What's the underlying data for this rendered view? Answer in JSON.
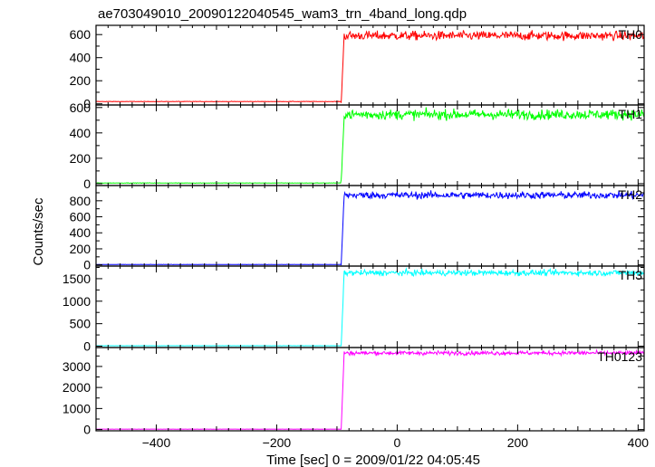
{
  "chart_data": {
    "type": "line",
    "title": "ae703049010_20090122040545_wam3_trn_4band_long.qdp",
    "xlabel": "Time [sec] 0 = 2009/01/22 04:05:45",
    "ylabel": "Counts/sec",
    "xlim": [
      -500,
      410
    ],
    "x_ticks": [
      -400,
      -200,
      0,
      200,
      400
    ],
    "x_tick_labels": [
      "−400",
      "−200",
      "0",
      "200",
      "400"
    ],
    "onset_time": -92,
    "panels": [
      {
        "name": "TH0",
        "color": "#ff0000",
        "ylim": [
          -10,
          680
        ],
        "y_ticks": [
          0,
          200,
          400,
          600
        ],
        "y_tick_labels": [
          "0",
          "200",
          "400",
          "600"
        ],
        "pre_level": 20,
        "post_level": 590,
        "noise": 28
      },
      {
        "name": "TH1",
        "color": "#00ff00",
        "ylim": [
          -15,
          620
        ],
        "y_ticks": [
          0,
          200,
          400,
          600
        ],
        "y_tick_labels": [
          "0",
          "200",
          "400",
          "600"
        ],
        "pre_level": 5,
        "post_level": 545,
        "noise": 28
      },
      {
        "name": "TH2",
        "color": "#0000ff",
        "ylim": [
          -15,
          990
        ],
        "y_ticks": [
          0,
          200,
          400,
          600,
          800
        ],
        "y_tick_labels": [
          "0",
          "200",
          "400",
          "600",
          "800"
        ],
        "pre_level": 5,
        "post_level": 870,
        "noise": 32
      },
      {
        "name": "TH3",
        "color": "#00ffff",
        "ylim": [
          -30,
          1780
        ],
        "y_ticks": [
          0,
          500,
          1000,
          1500
        ],
        "y_tick_labels": [
          "0",
          "500",
          "1000",
          "1500"
        ],
        "pre_level": 10,
        "post_level": 1630,
        "noise": 45
      },
      {
        "name": "TH0123",
        "color": "#ff00ff",
        "ylim": [
          -60,
          3900
        ],
        "y_ticks": [
          0,
          1000,
          2000,
          3000
        ],
        "y_tick_labels": [
          "0",
          "1000",
          "2000",
          "3000"
        ],
        "pre_level": 20,
        "post_level": 3640,
        "noise": 70
      }
    ]
  }
}
